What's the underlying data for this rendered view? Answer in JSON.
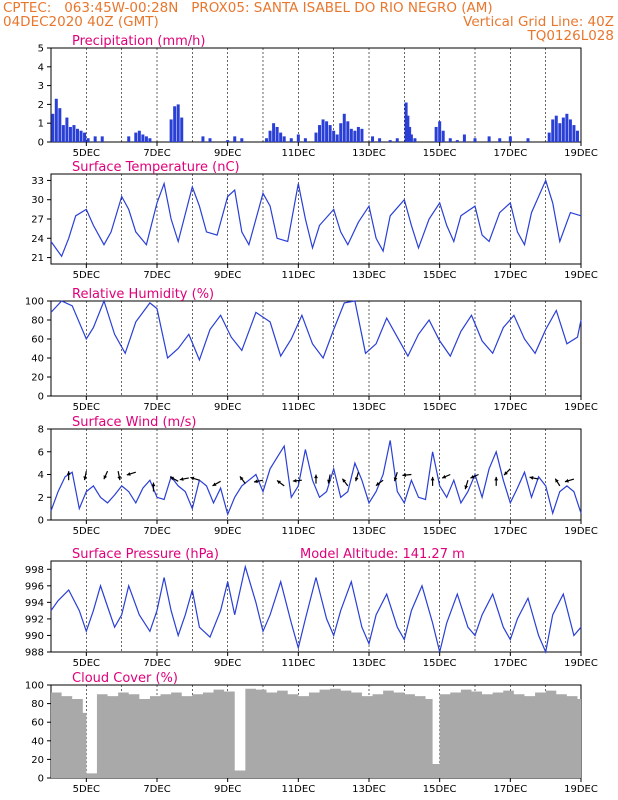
{
  "header": {
    "left_line1": "CPTEC:   063:45W-00:28N   PROX05: SANTA ISABEL DO RIO NEGRO (AM)",
    "left_line2": "04DEC2020 40Z (GMT)",
    "right_line2": "Vertical Grid Line: 40Z",
    "right_line3": "TQ0126L028"
  },
  "colors": {
    "header": "#e8772e",
    "panel_title": "#e0007a",
    "line": "#2a3fd6",
    "cloud": "#a9a9a9"
  },
  "x_axis": {
    "tick_labels": [
      "5DEC",
      "7DEC",
      "9DEC",
      "11DEC",
      "13DEC",
      "15DEC",
      "17DEC",
      "19DEC"
    ],
    "tick_days": [
      5,
      7,
      9,
      11,
      13,
      15,
      17,
      19
    ],
    "range_days": [
      4.0,
      19.0
    ]
  },
  "chart_data": [
    {
      "type": "bar",
      "title": "Precipitation (mm/h)",
      "ylim": [
        0,
        5
      ],
      "yticks": [
        0,
        1,
        2,
        3,
        4,
        5
      ],
      "x_days": [
        4.05,
        4.15,
        4.25,
        4.35,
        4.45,
        4.55,
        4.65,
        4.75,
        4.85,
        4.95,
        5.05,
        5.25,
        5.45,
        6.2,
        6.4,
        6.5,
        6.6,
        6.7,
        6.8,
        7.4,
        7.5,
        7.6,
        7.7,
        8.3,
        8.5,
        9.0,
        9.2,
        9.4,
        10.1,
        10.2,
        10.3,
        10.4,
        10.5,
        10.6,
        10.8,
        11.0,
        11.2,
        11.5,
        11.6,
        11.7,
        11.8,
        11.9,
        12.0,
        12.1,
        12.2,
        12.3,
        12.4,
        12.5,
        12.6,
        12.7,
        12.8,
        13.1,
        13.3,
        13.6,
        13.8,
        14.05,
        14.1,
        14.15,
        14.2,
        14.3,
        14.9,
        15.0,
        15.1,
        15.3,
        15.5,
        15.7,
        16.0,
        16.4,
        16.7,
        17.0,
        17.5,
        18.1,
        18.2,
        18.3,
        18.4,
        18.5,
        18.6,
        18.7,
        18.8,
        18.9
      ],
      "values": [
        1.5,
        2.3,
        1.8,
        0.9,
        1.3,
        0.8,
        0.9,
        0.7,
        0.6,
        0.5,
        0.2,
        0.3,
        0.3,
        0.3,
        0.5,
        0.6,
        0.4,
        0.3,
        0.2,
        1.2,
        1.9,
        2.0,
        1.3,
        0.3,
        0.2,
        0.1,
        0.3,
        0.2,
        0.2,
        0.6,
        1.0,
        0.8,
        0.5,
        0.3,
        0.2,
        0.4,
        0.2,
        0.5,
        0.9,
        1.2,
        1.1,
        0.9,
        0.6,
        0.4,
        1.0,
        1.5,
        1.1,
        0.7,
        0.6,
        0.8,
        0.7,
        0.3,
        0.2,
        0.1,
        0.2,
        2.1,
        1.4,
        0.8,
        0.4,
        0.2,
        0.8,
        1.1,
        0.6,
        0.2,
        0.1,
        0.4,
        0.2,
        0.3,
        0.2,
        0.3,
        0.2,
        0.5,
        1.2,
        1.4,
        1.0,
        1.3,
        1.5,
        1.2,
        0.9,
        0.6
      ]
    },
    {
      "type": "line",
      "title": "Surface Temperature (nC)",
      "ylim": [
        20,
        34
      ],
      "yticks": [
        21,
        24,
        27,
        30,
        33
      ],
      "x_days": [
        4.0,
        4.3,
        4.5,
        4.7,
        5.0,
        5.2,
        5.5,
        5.7,
        6.0,
        6.2,
        6.4,
        6.7,
        7.0,
        7.2,
        7.4,
        7.6,
        8.0,
        8.2,
        8.4,
        8.7,
        9.0,
        9.2,
        9.4,
        9.6,
        10.0,
        10.2,
        10.4,
        10.7,
        11.0,
        11.2,
        11.4,
        11.6,
        12.0,
        12.2,
        12.4,
        12.7,
        13.0,
        13.2,
        13.4,
        13.6,
        14.0,
        14.2,
        14.4,
        14.7,
        15.0,
        15.2,
        15.4,
        15.6,
        16.0,
        16.2,
        16.4,
        16.7,
        17.0,
        17.2,
        17.4,
        17.6,
        18.0,
        18.2,
        18.4,
        18.7,
        19.0
      ],
      "values": [
        23.5,
        21.2,
        24.0,
        27.5,
        28.5,
        26.0,
        23.0,
        25.0,
        30.5,
        28.5,
        25.0,
        23.0,
        29.5,
        32.5,
        27.0,
        23.5,
        32.0,
        29.0,
        25.0,
        24.5,
        30.5,
        31.5,
        25.0,
        23.0,
        31.0,
        29.0,
        24.0,
        23.5,
        32.5,
        27.0,
        22.5,
        26.0,
        28.5,
        25.0,
        23.0,
        26.5,
        29.0,
        24.0,
        22.0,
        27.5,
        30.0,
        26.0,
        22.5,
        27.0,
        29.5,
        26.0,
        23.5,
        27.5,
        29.0,
        24.5,
        23.5,
        28.0,
        29.5,
        25.0,
        23.0,
        28.0,
        33.0,
        29.5,
        23.5,
        28.0,
        27.5
      ]
    },
    {
      "type": "line",
      "title": "Relative Humidity (%)",
      "ylim": [
        0,
        100
      ],
      "yticks": [
        0,
        20,
        40,
        60,
        80,
        100
      ],
      "x_days": [
        4.0,
        4.3,
        4.6,
        5.0,
        5.2,
        5.5,
        5.8,
        6.1,
        6.4,
        6.8,
        7.0,
        7.3,
        7.6,
        7.9,
        8.2,
        8.5,
        8.8,
        9.1,
        9.4,
        9.8,
        10.2,
        10.5,
        10.8,
        11.1,
        11.4,
        11.7,
        12.0,
        12.3,
        12.6,
        12.9,
        13.2,
        13.5,
        13.8,
        14.1,
        14.4,
        14.7,
        15.0,
        15.3,
        15.6,
        15.9,
        16.2,
        16.5,
        16.8,
        17.1,
        17.4,
        17.7,
        18.0,
        18.3,
        18.6,
        18.9,
        19.0
      ],
      "values": [
        88,
        100,
        95,
        60,
        72,
        100,
        65,
        45,
        78,
        98,
        92,
        40,
        50,
        65,
        38,
        70,
        85,
        62,
        48,
        88,
        78,
        42,
        60,
        85,
        55,
        40,
        70,
        98,
        100,
        45,
        55,
        82,
        62,
        42,
        65,
        80,
        58,
        42,
        68,
        85,
        58,
        45,
        72,
        85,
        60,
        45,
        70,
        90,
        55,
        62,
        80
      ]
    },
    {
      "type": "line",
      "title": "Surface Wind (m/s)",
      "ylim": [
        0,
        8
      ],
      "yticks": [
        0,
        2,
        4,
        6,
        8
      ],
      "x_days": [
        4.0,
        4.2,
        4.4,
        4.6,
        4.8,
        5.0,
        5.2,
        5.4,
        5.6,
        5.8,
        6.0,
        6.2,
        6.4,
        6.6,
        6.8,
        7.0,
        7.2,
        7.4,
        7.6,
        7.8,
        8.0,
        8.2,
        8.4,
        8.6,
        8.8,
        9.0,
        9.2,
        9.4,
        9.6,
        9.8,
        10.0,
        10.2,
        10.4,
        10.6,
        10.8,
        11.0,
        11.2,
        11.4,
        11.6,
        11.8,
        12.0,
        12.2,
        12.4,
        12.6,
        12.8,
        13.0,
        13.2,
        13.4,
        13.6,
        13.8,
        14.0,
        14.2,
        14.4,
        14.6,
        14.8,
        15.0,
        15.2,
        15.4,
        15.6,
        15.8,
        16.0,
        16.2,
        16.4,
        16.6,
        16.8,
        17.0,
        17.2,
        17.4,
        17.6,
        17.8,
        18.0,
        18.2,
        18.4,
        18.6,
        18.8,
        19.0
      ],
      "values": [
        0.8,
        2.5,
        3.8,
        4.2,
        1.0,
        2.5,
        3.0,
        2.0,
        1.5,
        2.2,
        3.0,
        2.5,
        1.5,
        2.8,
        3.5,
        2.0,
        1.8,
        3.8,
        3.0,
        2.5,
        1.0,
        3.5,
        3.0,
        1.5,
        2.8,
        0.5,
        2.0,
        3.0,
        3.5,
        4.0,
        2.5,
        4.5,
        5.5,
        6.5,
        2.0,
        3.0,
        6.2,
        3.5,
        2.0,
        2.5,
        4.5,
        2.0,
        2.5,
        5.0,
        3.5,
        1.5,
        2.5,
        4.0,
        7.0,
        2.5,
        1.5,
        3.5,
        2.0,
        1.8,
        6.0,
        3.0,
        2.0,
        3.5,
        1.5,
        2.5,
        4.0,
        2.0,
        4.5,
        6.0,
        3.5,
        1.5,
        2.8,
        4.2,
        2.0,
        3.8,
        3.0,
        0.6,
        2.5,
        3.0,
        2.5,
        0.6
      ],
      "arrows": [
        {
          "day": 4.5,
          "speed": 3.5,
          "dx": 0.0,
          "dy": -1
        },
        {
          "day": 5.0,
          "speed": 4.3,
          "dx": -0.2,
          "dy": 1
        },
        {
          "day": 5.6,
          "speed": 4.3,
          "dx": -0.4,
          "dy": 0.9
        },
        {
          "day": 5.9,
          "speed": 4.3,
          "dx": 0.2,
          "dy": 1
        },
        {
          "day": 6.4,
          "speed": 4.2,
          "dx": -1,
          "dy": 0.3
        },
        {
          "day": 6.9,
          "speed": 2.5,
          "dx": 0.0,
          "dy": -1
        },
        {
          "day": 7.6,
          "speed": 3.4,
          "dx": -0.9,
          "dy": -0.5
        },
        {
          "day": 7.9,
          "speed": 3.7,
          "dx": -1,
          "dy": 0.2
        },
        {
          "day": 8.2,
          "speed": 3.5,
          "dx": -1,
          "dy": -0.3
        },
        {
          "day": 8.8,
          "speed": 3.4,
          "dx": -0.9,
          "dy": 0.5
        },
        {
          "day": 9.5,
          "speed": 3.2,
          "dx": -0.6,
          "dy": -0.8
        },
        {
          "day": 10.0,
          "speed": 3.5,
          "dx": -1,
          "dy": 0.2
        },
        {
          "day": 10.6,
          "speed": 3.0,
          "dx": -0.8,
          "dy": -0.6
        },
        {
          "day": 11.1,
          "speed": 3.5,
          "dx": -1,
          "dy": 0.1
        },
        {
          "day": 11.5,
          "speed": 3.2,
          "dx": 0.0,
          "dy": -1
        },
        {
          "day": 11.9,
          "speed": 4.0,
          "dx": -0.2,
          "dy": 1
        },
        {
          "day": 12.4,
          "speed": 3.0,
          "dx": -0.6,
          "dy": -0.8
        },
        {
          "day": 12.7,
          "speed": 4.2,
          "dx": -0.3,
          "dy": 1
        },
        {
          "day": 13.4,
          "speed": 3.5,
          "dx": -0.8,
          "dy": 0.6
        },
        {
          "day": 13.8,
          "speed": 4.2,
          "dx": -0.3,
          "dy": 1
        },
        {
          "day": 14.2,
          "speed": 4.0,
          "dx": -1,
          "dy": 0.1
        },
        {
          "day": 14.8,
          "speed": 3.0,
          "dx": 0.0,
          "dy": -1
        },
        {
          "day": 15.3,
          "speed": 4.0,
          "dx": -0.9,
          "dy": 0.4
        },
        {
          "day": 15.8,
          "speed": 3.5,
          "dx": -0.3,
          "dy": 1
        },
        {
          "day": 16.1,
          "speed": 4.0,
          "dx": -0.9,
          "dy": 0.4
        },
        {
          "day": 16.6,
          "speed": 3.0,
          "dx": 0.0,
          "dy": -1
        },
        {
          "day": 17.0,
          "speed": 4.5,
          "dx": -0.7,
          "dy": 0.7
        },
        {
          "day": 17.8,
          "speed": 3.6,
          "dx": -1,
          "dy": -0.2
        },
        {
          "day": 18.4,
          "speed": 3.0,
          "dx": -0.5,
          "dy": -0.8
        },
        {
          "day": 18.8,
          "speed": 3.6,
          "dx": -1,
          "dy": 0.3
        }
      ]
    },
    {
      "type": "line",
      "title": "Surface Pressure (hPa)",
      "subtitle": "Model Altitude: 141.27 m",
      "ylim": [
        988,
        999
      ],
      "yticks": [
        988,
        990,
        992,
        994,
        996,
        998
      ],
      "x_days": [
        4.0,
        4.2,
        4.5,
        4.8,
        5.0,
        5.2,
        5.4,
        5.6,
        5.8,
        6.0,
        6.2,
        6.5,
        6.8,
        7.0,
        7.2,
        7.4,
        7.6,
        7.8,
        8.0,
        8.2,
        8.5,
        8.8,
        9.0,
        9.2,
        9.5,
        9.8,
        10.0,
        10.2,
        10.5,
        10.8,
        11.0,
        11.2,
        11.5,
        11.8,
        12.0,
        12.2,
        12.5,
        12.8,
        13.0,
        13.2,
        13.5,
        13.8,
        14.0,
        14.2,
        14.5,
        14.8,
        15.0,
        15.2,
        15.5,
        15.8,
        16.0,
        16.2,
        16.5,
        16.8,
        17.0,
        17.2,
        17.5,
        17.8,
        18.0,
        18.2,
        18.5,
        18.8,
        19.0
      ],
      "values": [
        993.0,
        994.2,
        995.5,
        993.0,
        990.5,
        993.0,
        996.0,
        993.5,
        991.0,
        992.5,
        996.0,
        992.5,
        990.5,
        993.0,
        997.0,
        993.0,
        990.0,
        992.5,
        995.5,
        991.0,
        989.8,
        993.0,
        996.5,
        992.5,
        998.3,
        994.0,
        990.5,
        992.5,
        996.5,
        991.5,
        988.5,
        992.0,
        997.0,
        992.0,
        990.0,
        993.0,
        996.5,
        991.0,
        989.0,
        992.5,
        995.0,
        991.0,
        989.5,
        993.0,
        996.0,
        991.5,
        988.0,
        991.5,
        995.0,
        991.0,
        990.0,
        992.5,
        995.0,
        991.0,
        989.5,
        992.0,
        994.5,
        990.0,
        988.0,
        992.5,
        995.0,
        990.0,
        991.0
      ]
    },
    {
      "type": "bar",
      "title": "Cloud Cover (%)",
      "ylim": [
        0,
        100
      ],
      "yticks": [
        0,
        20,
        40,
        60,
        80,
        100
      ],
      "x_days": [
        4.0,
        4.3,
        4.6,
        4.9,
        5.0,
        5.3,
        5.6,
        5.9,
        6.2,
        6.5,
        6.8,
        7.1,
        7.4,
        7.7,
        8.0,
        8.3,
        8.6,
        8.9,
        9.2,
        9.5,
        9.8,
        10.1,
        10.4,
        10.7,
        11.0,
        11.3,
        11.6,
        11.9,
        12.2,
        12.5,
        12.8,
        13.1,
        13.4,
        13.7,
        14.0,
        14.3,
        14.6,
        14.8,
        15.0,
        15.3,
        15.6,
        15.9,
        16.2,
        16.5,
        16.8,
        17.1,
        17.4,
        17.7,
        18.0,
        18.3,
        18.6,
        18.9
      ],
      "values": [
        92,
        88,
        85,
        70,
        5,
        90,
        88,
        92,
        90,
        85,
        88,
        90,
        92,
        88,
        90,
        92,
        95,
        93,
        8,
        96,
        95,
        92,
        94,
        90,
        88,
        92,
        95,
        96,
        94,
        92,
        88,
        90,
        94,
        92,
        90,
        88,
        85,
        15,
        90,
        92,
        95,
        93,
        90,
        92,
        94,
        90,
        88,
        92,
        94,
        90,
        88,
        85
      ]
    }
  ]
}
